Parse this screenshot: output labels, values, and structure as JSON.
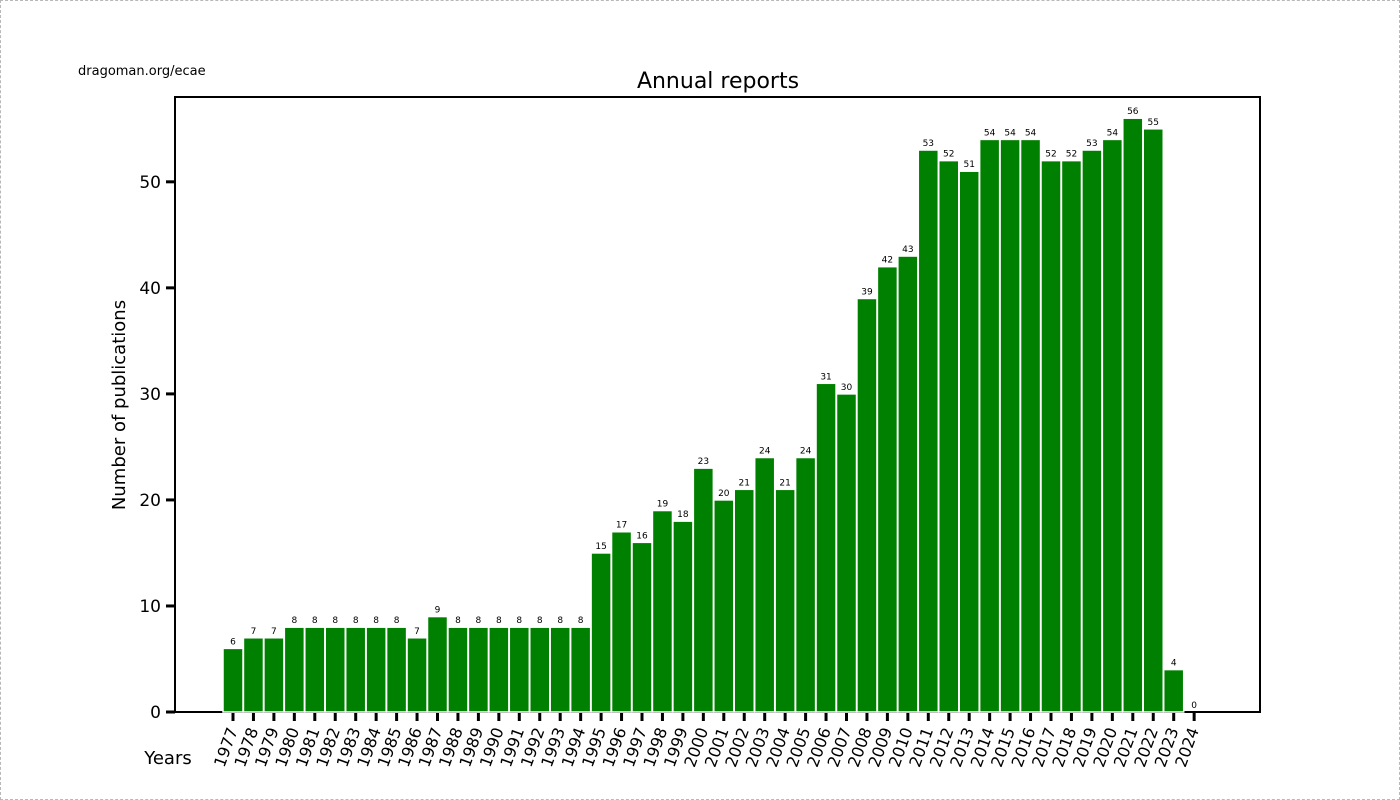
{
  "source_label": "dragoman.org/ecae",
  "colors": {
    "bar": "#008000",
    "bar_edge": "#ffffff",
    "axis": "#000000"
  },
  "chart_data": {
    "type": "bar",
    "title": "Annual reports",
    "xlabel": "Years",
    "ylabel": "Number of publications",
    "ylim": [
      0,
      58
    ],
    "yticks": [
      0,
      10,
      20,
      30,
      40,
      50
    ],
    "grid": false,
    "categories": [
      "1977",
      "1978",
      "1979",
      "1980",
      "1981",
      "1982",
      "1983",
      "1984",
      "1985",
      "1986",
      "1987",
      "1988",
      "1989",
      "1990",
      "1991",
      "1992",
      "1993",
      "1994",
      "1995",
      "1996",
      "1997",
      "1998",
      "1999",
      "2000",
      "2001",
      "2002",
      "2003",
      "2004",
      "2005",
      "2006",
      "2007",
      "2008",
      "2009",
      "2010",
      "2011",
      "2012",
      "2013",
      "2014",
      "2015",
      "2016",
      "2017",
      "2018",
      "2019",
      "2020",
      "2021",
      "2022",
      "2023",
      "2024"
    ],
    "values": [
      6,
      7,
      7,
      8,
      8,
      8,
      8,
      8,
      8,
      7,
      9,
      8,
      8,
      8,
      8,
      8,
      8,
      8,
      15,
      17,
      16,
      19,
      18,
      23,
      20,
      21,
      24,
      21,
      24,
      31,
      30,
      39,
      42,
      43,
      53,
      52,
      51,
      54,
      54,
      54,
      52,
      52,
      53,
      54,
      56,
      55,
      4,
      0
    ]
  }
}
